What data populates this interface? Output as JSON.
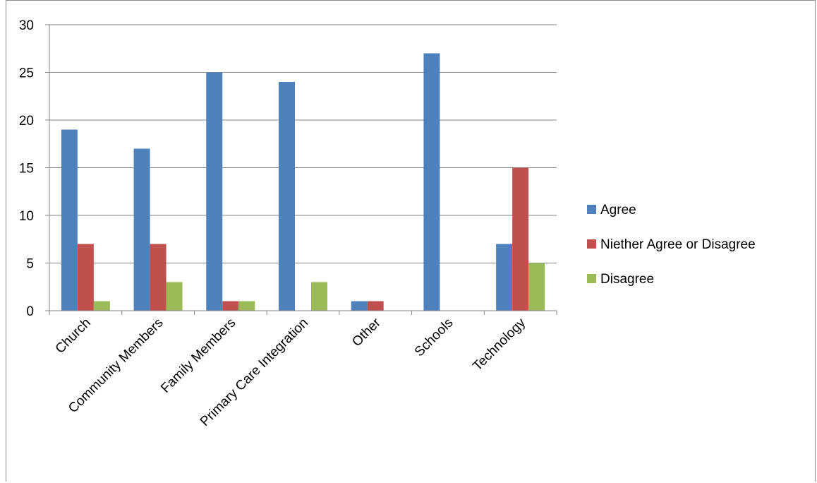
{
  "chart_data": {
    "type": "bar",
    "title": "",
    "xlabel": "",
    "ylabel": "",
    "categories": [
      "Church",
      "Community Members",
      "Family Members",
      "Primary Care Integration",
      "Other",
      "Schools",
      "Technology"
    ],
    "series": [
      {
        "name": "Agree",
        "color": "#4F81BD",
        "values": [
          19,
          17,
          25,
          24,
          1,
          27,
          7
        ]
      },
      {
        "name": "Niether Agree or Disagree",
        "color": "#C0504D",
        "values": [
          7,
          7,
          1,
          0,
          1,
          0,
          15
        ]
      },
      {
        "name": "Disagree",
        "color": "#9BBB59",
        "values": [
          1,
          3,
          1,
          3,
          0,
          0,
          5
        ]
      }
    ],
    "ylim": [
      0,
      30
    ],
    "yticks": [
      "0",
      "5",
      "10",
      "15",
      "20",
      "25",
      "30"
    ],
    "grid": true,
    "legend": "right"
  }
}
